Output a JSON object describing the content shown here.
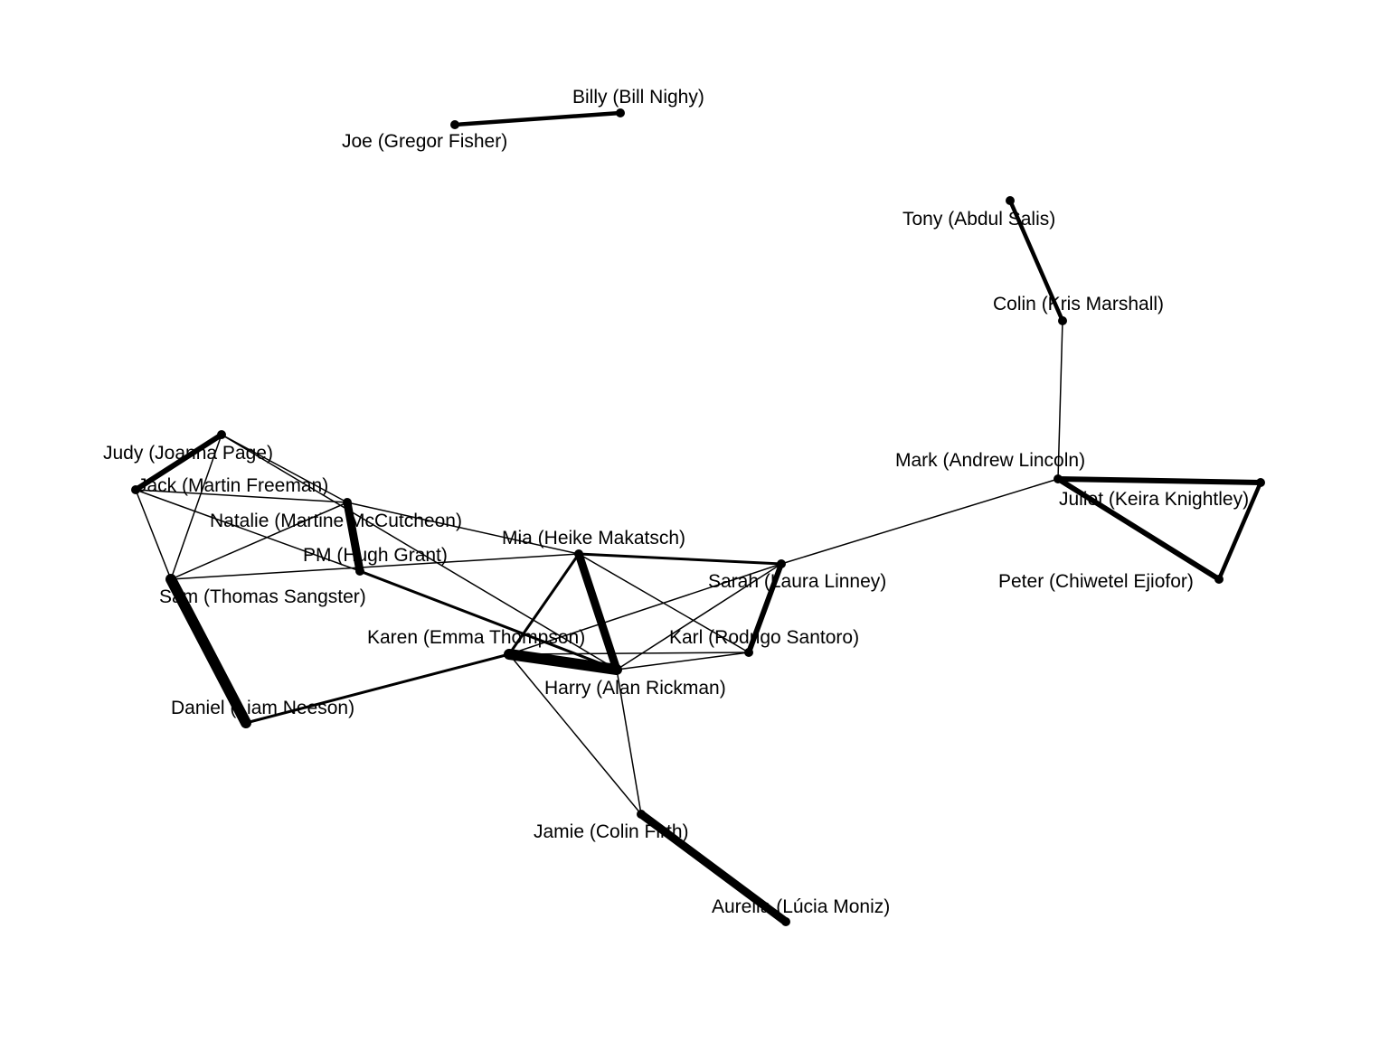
{
  "graph": {
    "nodes": [
      {
        "id": "billy",
        "label": "Billy (Bill Nighy)"
      },
      {
        "id": "joe",
        "label": "Joe (Gregor Fisher)"
      },
      {
        "id": "tony",
        "label": "Tony (Abdul Salis)"
      },
      {
        "id": "colin",
        "label": "Colin (Kris Marshall)"
      },
      {
        "id": "mark",
        "label": "Mark (Andrew Lincoln)"
      },
      {
        "id": "juliet",
        "label": "Juliet (Keira Knightley)"
      },
      {
        "id": "peter",
        "label": "Peter (Chiwetel Ejiofor)"
      },
      {
        "id": "judy",
        "label": "Judy (Joanna Page)"
      },
      {
        "id": "jack",
        "label": "Jack (Martin Freeman)"
      },
      {
        "id": "natalie",
        "label": "Natalie (Martine McCutcheon)"
      },
      {
        "id": "pm",
        "label": "PM (Hugh Grant)"
      },
      {
        "id": "sam",
        "label": "Sam (Thomas Sangster)"
      },
      {
        "id": "mia",
        "label": "Mia (Heike Makatsch)"
      },
      {
        "id": "sarah",
        "label": "Sarah (Laura Linney)"
      },
      {
        "id": "karen",
        "label": "Karen (Emma Thompson)"
      },
      {
        "id": "karl",
        "label": "Karl (Rodrigo Santoro)"
      },
      {
        "id": "harry",
        "label": "Harry (Alan Rickman)"
      },
      {
        "id": "daniel",
        "label": "Daniel (Liam Neeson)"
      },
      {
        "id": "jamie",
        "label": "Jamie (Colin Firth)"
      },
      {
        "id": "aurelia",
        "label": "Aurelia (Lúcia Moniz)"
      }
    ],
    "edges": [
      {
        "source": "billy",
        "target": "joe",
        "weight": 3
      },
      {
        "source": "tony",
        "target": "colin",
        "weight": 3
      },
      {
        "source": "colin",
        "target": "mark",
        "weight": 1
      },
      {
        "source": "mark",
        "target": "juliet",
        "weight": 4
      },
      {
        "source": "mark",
        "target": "peter",
        "weight": 4
      },
      {
        "source": "juliet",
        "target": "peter",
        "weight": 3
      },
      {
        "source": "mark",
        "target": "sarah",
        "weight": 1
      },
      {
        "source": "judy",
        "target": "jack",
        "weight": 4
      },
      {
        "source": "judy",
        "target": "sam",
        "weight": 1
      },
      {
        "source": "judy",
        "target": "natalie",
        "weight": 1
      },
      {
        "source": "judy",
        "target": "harry",
        "weight": 1
      },
      {
        "source": "jack",
        "target": "natalie",
        "weight": 1
      },
      {
        "source": "jack",
        "target": "sam",
        "weight": 1
      },
      {
        "source": "jack",
        "target": "pm",
        "weight": 1
      },
      {
        "source": "natalie",
        "target": "pm",
        "weight": 6
      },
      {
        "source": "natalie",
        "target": "sam",
        "weight": 1
      },
      {
        "source": "natalie",
        "target": "mia",
        "weight": 1
      },
      {
        "source": "pm",
        "target": "harry",
        "weight": 2
      },
      {
        "source": "sam",
        "target": "mia",
        "weight": 1
      },
      {
        "source": "sam",
        "target": "daniel",
        "weight": 8
      },
      {
        "source": "daniel",
        "target": "karen",
        "weight": 2
      },
      {
        "source": "mia",
        "target": "karen",
        "weight": 2
      },
      {
        "source": "mia",
        "target": "harry",
        "weight": 6
      },
      {
        "source": "mia",
        "target": "sarah",
        "weight": 2
      },
      {
        "source": "mia",
        "target": "karl",
        "weight": 1
      },
      {
        "source": "karen",
        "target": "harry",
        "weight": 8
      },
      {
        "source": "karen",
        "target": "sarah",
        "weight": 1
      },
      {
        "source": "karen",
        "target": "karl",
        "weight": 1
      },
      {
        "source": "karen",
        "target": "jamie",
        "weight": 1
      },
      {
        "source": "harry",
        "target": "sarah",
        "weight": 1
      },
      {
        "source": "harry",
        "target": "karl",
        "weight": 1
      },
      {
        "source": "harry",
        "target": "jamie",
        "weight": 1
      },
      {
        "source": "sarah",
        "target": "karl",
        "weight": 4
      },
      {
        "source": "jamie",
        "target": "aurelia",
        "weight": 6
      }
    ]
  }
}
